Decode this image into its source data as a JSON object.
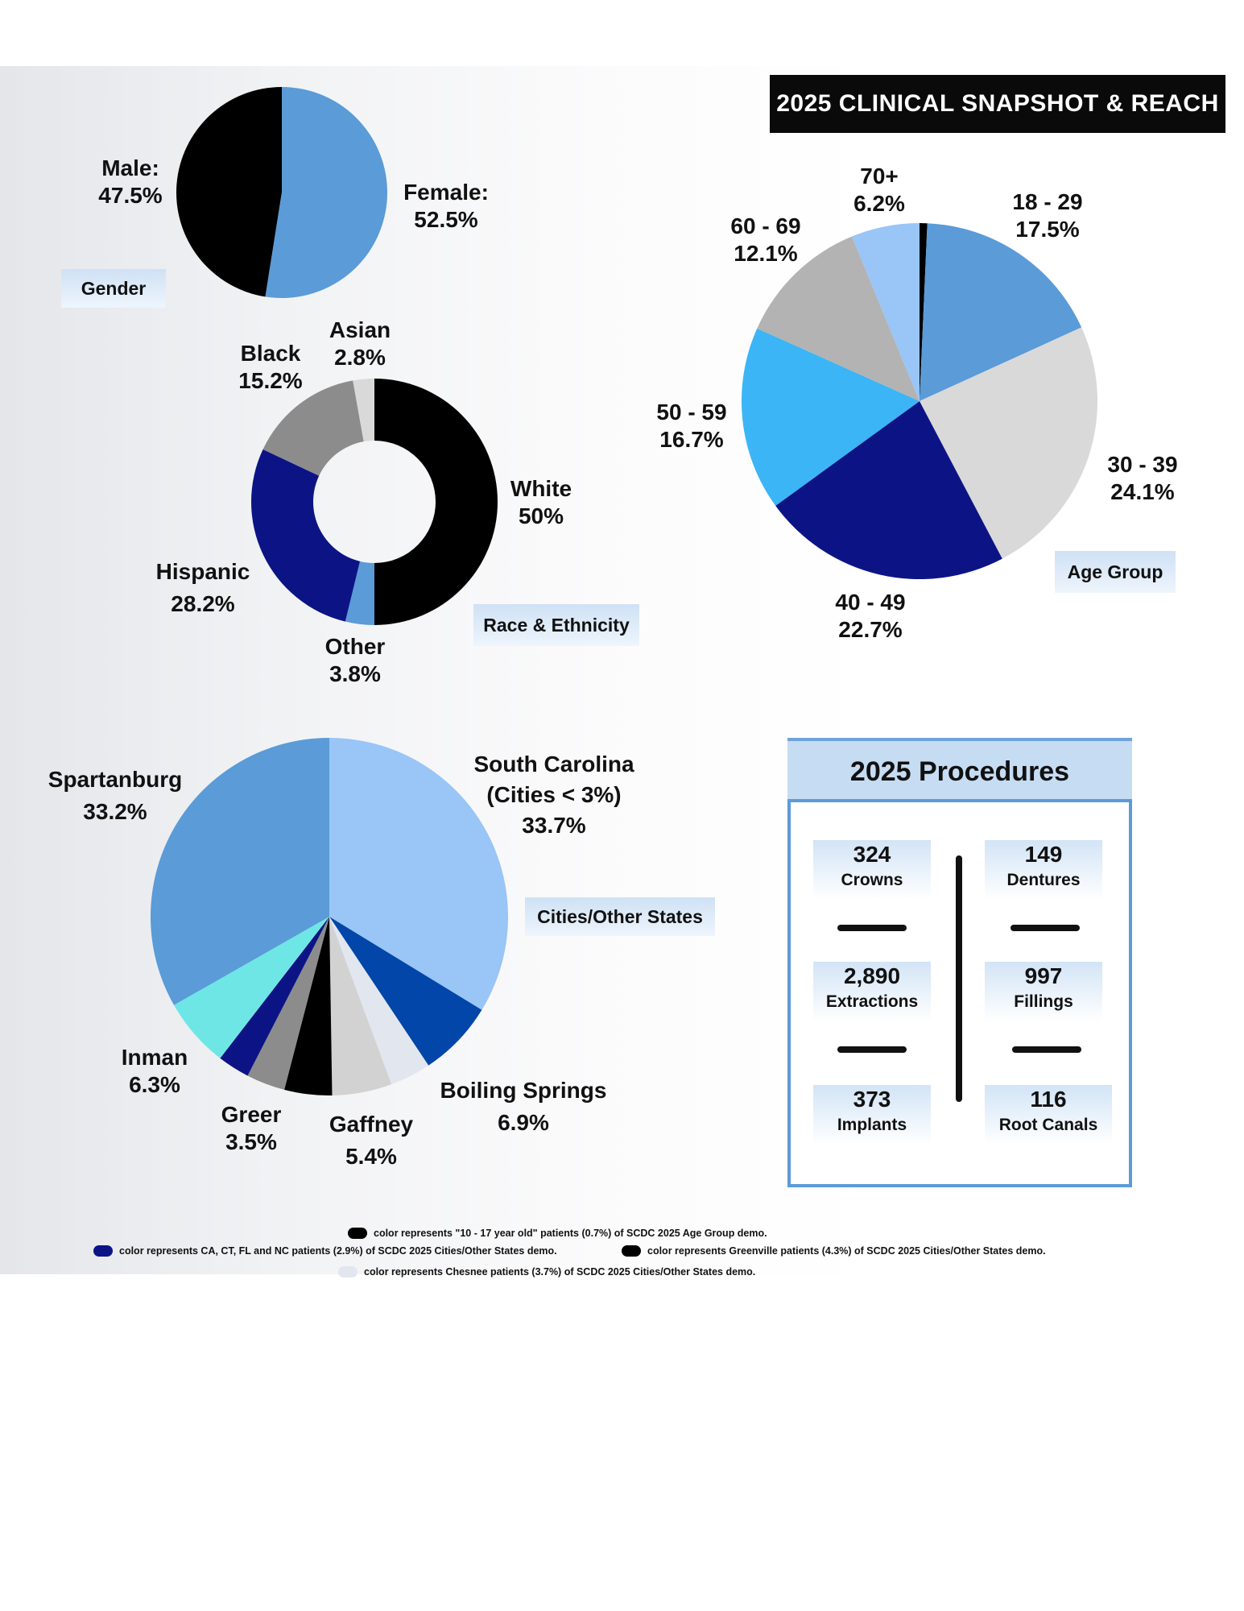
{
  "title": "2025 CLINICAL SNAPSHOT & REACH",
  "chart_data": [
    {
      "id": "gender",
      "type": "pie",
      "title": "Gender",
      "slices": [
        {
          "label": "Male:",
          "value": 47.5,
          "display": "47.5%",
          "color": "#000000"
        },
        {
          "label": "Female:",
          "value": 52.5,
          "display": "52.5%",
          "color": "#5a9bd8"
        }
      ]
    },
    {
      "id": "race",
      "type": "pie",
      "title": "Race & Ethnicity",
      "slices": [
        {
          "label": "White",
          "value": 50,
          "display": "50%",
          "color": "#000000"
        },
        {
          "label": "Other",
          "value": 3.8,
          "display": "3.8%",
          "color": "#5a9bd8"
        },
        {
          "label": "Hispanic",
          "value": 28.2,
          "display": "28.2%",
          "color": "#0c1485"
        },
        {
          "label": "Black",
          "value": 15.2,
          "display": "15.2%",
          "color": "#8c8c8c"
        },
        {
          "label": "Asian",
          "value": 2.8,
          "display": "2.8%",
          "color": "#d9d9d9"
        }
      ]
    },
    {
      "id": "age",
      "type": "pie",
      "title": "Age Group",
      "slices": [
        {
          "label": "10 - 17",
          "value": 0.7,
          "display": "",
          "color": "#000000"
        },
        {
          "label": "18 - 29",
          "value": 17.5,
          "display": "17.5%",
          "color": "#5a9bd8"
        },
        {
          "label": "30 - 39",
          "value": 24.1,
          "display": "24.1%",
          "color": "#d9d9d9"
        },
        {
          "label": "40 - 49",
          "value": 22.7,
          "display": "22.7%",
          "color": "#0c1485"
        },
        {
          "label": "50 - 59",
          "value": 16.7,
          "display": "16.7%",
          "color": "#3bb5f5"
        },
        {
          "label": "60 - 69",
          "value": 12.1,
          "display": "12.1%",
          "color": "#b3b3b3"
        },
        {
          "label": "70+",
          "value": 6.2,
          "display": "6.2%",
          "color": "#99c5f7"
        }
      ]
    },
    {
      "id": "cities",
      "type": "pie",
      "title": "Cities/Other States",
      "slices": [
        {
          "label": "South Carolina (Cities < 3%)",
          "value": 33.7,
          "display": "33.7%",
          "color": "#99c5f7"
        },
        {
          "label": "Boiling Springs",
          "value": 6.9,
          "display": "6.9%",
          "color": "#0146a8"
        },
        {
          "label": "Chesnee",
          "value": 3.7,
          "display": "",
          "color": "#e2e6ee"
        },
        {
          "label": "Gaffney",
          "value": 5.4,
          "display": "5.4%",
          "color": "#d2d2d2"
        },
        {
          "label": "Greenville",
          "value": 4.3,
          "display": "",
          "color": "#000000"
        },
        {
          "label": "Greer",
          "value": 3.5,
          "display": "3.5%",
          "color": "#8c8c8c"
        },
        {
          "label": "CA, CT, FL and NC",
          "value": 2.9,
          "display": "",
          "color": "#0c1485"
        },
        {
          "label": "Inman",
          "value": 6.3,
          "display": "6.3%",
          "color": "#6ee6e6"
        },
        {
          "label": "Spartanburg",
          "value": 33.2,
          "display": "33.2%",
          "color": "#5a9bd8"
        }
      ]
    }
  ],
  "labels": {
    "south_carolina_line1": "South Carolina",
    "south_carolina_line2": "(Cities < 3%)"
  },
  "procedures": {
    "title": "2025 Procedures",
    "items": [
      {
        "value": "324",
        "label": "Crowns"
      },
      {
        "value": "149",
        "label": "Dentures"
      },
      {
        "value": "2,890",
        "label": "Extractions"
      },
      {
        "value": "997",
        "label": "Fillings"
      },
      {
        "value": "373",
        "label": "Implants"
      },
      {
        "value": "116",
        "label": "Root Canals"
      }
    ]
  },
  "notes": [
    {
      "color": "#000000",
      "text": "color represents \"10 - 17 year old\" patients (0.7%) of SCDC 2025 Age Group demo."
    },
    {
      "color": "#0c1485",
      "text": "color represents CA, CT, FL and NC patients (2.9%) of SCDC 2025 Cities/Other States demo."
    },
    {
      "color": "#000000",
      "text": "color represents Greenville patients (4.3%) of SCDC 2025 Cities/Other States demo."
    },
    {
      "color": "#e2e6ee",
      "text": "color represents Chesnee patients (3.7%) of SCDC 2025 Cities/Other States demo."
    }
  ]
}
